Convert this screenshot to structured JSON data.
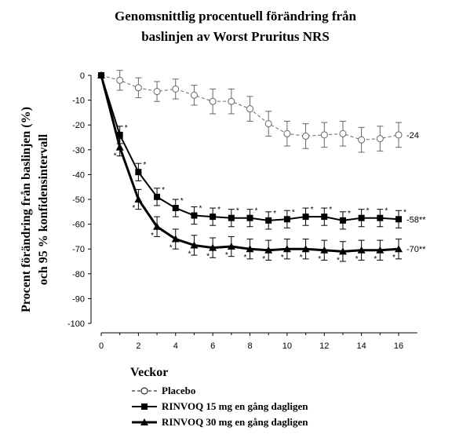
{
  "chart_data": {
    "type": "line",
    "title_lines": [
      "Genomsnittlig procentuell förändring från",
      "baslinjen av Worst Pruritus NRS"
    ],
    "ylabel_lines": [
      "Procent förändring från baslinjen (%)",
      "och 95 % konfidensintervall"
    ],
    "xlabel": "Veckor",
    "xlim": [
      0,
      16
    ],
    "ylim": [
      -100,
      0
    ],
    "x_ticks": [
      0,
      2,
      4,
      6,
      8,
      10,
      12,
      14,
      16
    ],
    "y_ticks": [
      0,
      -10,
      -20,
      -30,
      -40,
      -50,
      -60,
      -70,
      -80,
      -90,
      -100
    ],
    "grid": false,
    "legend_position": "bottom",
    "series": [
      {
        "name": "Placebo",
        "marker": "open-circle",
        "line_style": "dashed",
        "end_label": "-24",
        "x": [
          0,
          1,
          2,
          3,
          4,
          5,
          6,
          7,
          8,
          9,
          10,
          11,
          12,
          13,
          14,
          15,
          16
        ],
        "y": [
          0,
          -2,
          -5,
          -6.5,
          -5.5,
          -8,
          -10.5,
          -10.5,
          -13.5,
          -19.5,
          -23.5,
          -24.5,
          -24,
          -23.5,
          -26,
          -25.5,
          -24
        ],
        "error": [
          0,
          4,
          4,
          4,
          4,
          4,
          5,
          5,
          5,
          5,
          5,
          5,
          5,
          5,
          5,
          5,
          5
        ]
      },
      {
        "name": "RINVOQ 15 mg en gång dagligen",
        "marker": "filled-square",
        "line_style": "solid",
        "end_label": "-58**",
        "significance": "*",
        "x": [
          0,
          1,
          2,
          3,
          4,
          5,
          6,
          7,
          8,
          9,
          10,
          11,
          12,
          13,
          14,
          15,
          16
        ],
        "y": [
          0,
          -24,
          -39,
          -49,
          -53.5,
          -56.5,
          -57,
          -57.5,
          -57.5,
          -58.5,
          -58,
          -57,
          -57,
          -58.5,
          -57.5,
          -57.5,
          -58
        ],
        "error": [
          0,
          3.5,
          3.5,
          3.5,
          3.5,
          3.5,
          3.5,
          3.5,
          3.5,
          3.5,
          3.5,
          3.5,
          3.5,
          3.5,
          3.5,
          3.5,
          3.5
        ]
      },
      {
        "name": "RINVOQ 30 mg en gång dagligen",
        "marker": "filled-triangle",
        "line_style": "solid",
        "end_label": "-70**",
        "significance": "*",
        "x": [
          0,
          1,
          2,
          3,
          4,
          5,
          6,
          7,
          8,
          9,
          10,
          11,
          12,
          13,
          14,
          15,
          16
        ],
        "y": [
          0,
          -29,
          -50,
          -61,
          -66,
          -68.5,
          -69.5,
          -69,
          -70,
          -70.5,
          -70,
          -70,
          -70.5,
          -71,
          -70.5,
          -70.5,
          -70
        ],
        "error": [
          0,
          3.5,
          4,
          4,
          4,
          4,
          4,
          4,
          4,
          4,
          4,
          4,
          4,
          4,
          4,
          4,
          4
        ]
      }
    ]
  }
}
